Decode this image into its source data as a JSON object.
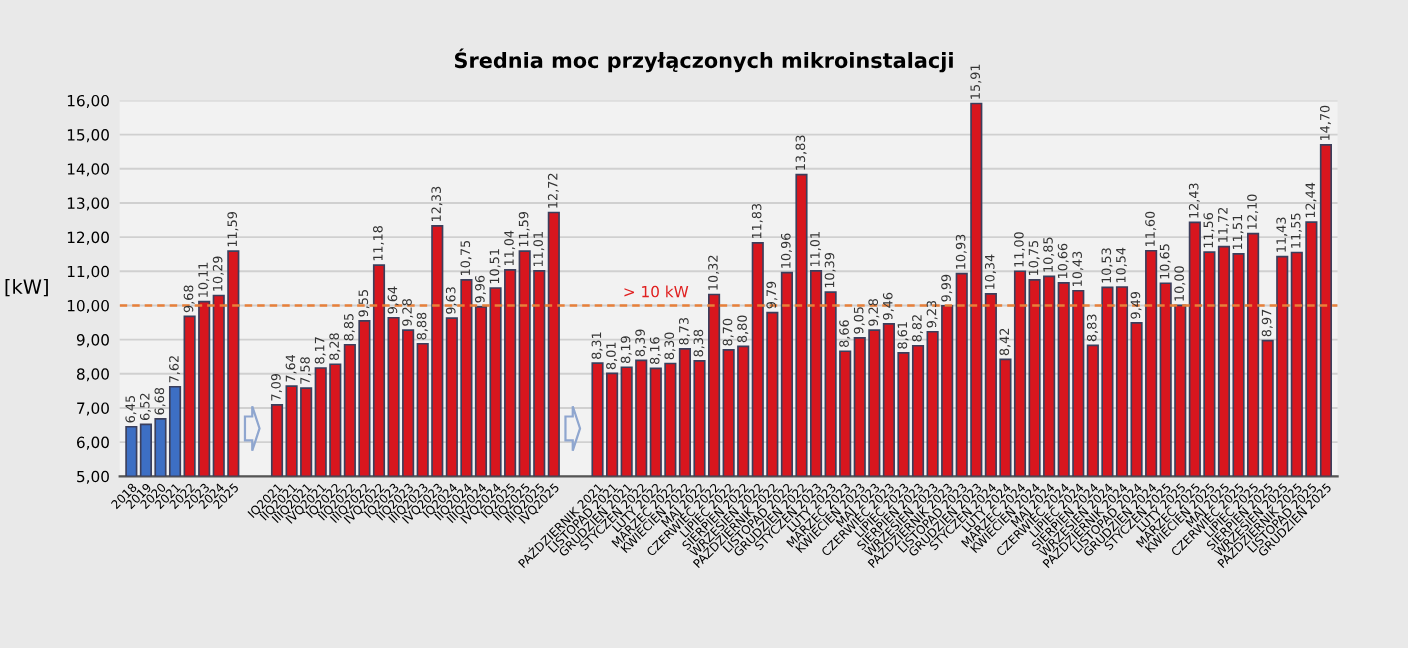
{
  "chart_data": {
    "type": "bar",
    "title": "Średnia moc przyłączonych mikroinstalacji",
    "ylabel": "[kW]",
    "categories": [
      "2018",
      "2019",
      "2020",
      "2021",
      "2022",
      "2023",
      "2024",
      "2025",
      null,
      null,
      "IQ2021",
      "IIQ2021",
      "IIIQ2021",
      "IVQ2021",
      "IQ2022",
      "IIQ2022",
      "IIIQ2022",
      "IVQ2022",
      "IQ2023",
      "IIQ2023",
      "IIIQ2023",
      "IVQ2023",
      "IQ2024",
      "IIQ2024",
      "IIIQ2024",
      "IVQ2024",
      "IQ2025",
      "IIQ2025",
      "IIIQ2025",
      "IVQ2025",
      null,
      null,
      "PAŹDZIERNIK 2021",
      "LISTOPAD 2021",
      "GRUDZIEŃ 2021",
      "STYCZEŃ 2022",
      "LUTY 2022",
      "MARZEC 2022",
      "KWIECIEŃ 2022",
      "MAJ 2022",
      "CZERWIEC 2022",
      "LIPIEC 2022",
      "SIERPIEŃ 2022",
      "WRZESIEŃ 2022",
      "PAŹDZIERNIK 2022",
      "LISTOPAD 2022",
      "GRUDZIEŃ 2022",
      "STYCZEŃ 2023",
      "LUTY 2023",
      "MARZEC 2023",
      "KWIECIEŃ 2023",
      "MAJ 2023",
      "CZERWIEC 2023",
      "LIPIEC 2023",
      "SIERPIEŃ 2023",
      "WRZESIEŃ 2023",
      "PAŹDZIERNIK 2023",
      "LISTOPAD 2023",
      "GRUDZIEŃ 2023",
      "STYCZEŃ 2024",
      "LUTY 2024",
      "MARZEC 2024",
      "KWIECIEŃ 2024",
      "MAJ 2024",
      "CZERWIEC 2024",
      "LIPIEC 2024",
      "SIERPIEŃ 2024",
      "WRZESIEŃ 2024",
      "PAŹDZIERNIK 2024",
      "LISTOPAD 2024",
      "GRUDZIEŃ 2024",
      "STYCZEŃ 2025",
      "LUTY 2025",
      "MARZEC 2025",
      "KWIECIEŃ 2025",
      "MAJ 2025",
      "CZERWIEC 2025",
      "LIPIEC 2025",
      "SIERPIEŃ 2025",
      "WRZESIEŃ 2025",
      "PAŹDZIERNIK 2025",
      "LISTOPAD 2025",
      "GRUDZIEŃ 2025"
    ],
    "values": [
      6.45,
      6.52,
      6.68,
      7.62,
      9.68,
      10.11,
      10.29,
      11.59,
      null,
      null,
      7.09,
      7.64,
      7.58,
      8.17,
      8.28,
      8.85,
      9.55,
      11.18,
      9.64,
      9.28,
      8.88,
      12.33,
      9.63,
      10.75,
      9.96,
      10.51,
      11.04,
      11.59,
      11.01,
      12.72,
      null,
      null,
      8.31,
      8.01,
      8.19,
      8.39,
      8.16,
      8.3,
      8.73,
      8.38,
      10.32,
      8.7,
      8.8,
      11.83,
      9.79,
      10.96,
      13.83,
      11.01,
      10.39,
      8.66,
      9.05,
      9.28,
      9.46,
      8.61,
      8.82,
      9.23,
      9.99,
      10.93,
      15.91,
      10.34,
      8.42,
      11.0,
      10.75,
      10.85,
      10.66,
      10.43,
      8.83,
      10.53,
      10.54,
      9.49,
      11.6,
      10.65,
      10.0,
      12.43,
      11.56,
      11.72,
      11.51,
      12.1,
      8.97,
      11.43,
      11.55,
      12.44,
      14.7
    ],
    "value_labels": [
      "6,45",
      "6,52",
      "6,68",
      "7,62",
      "9,68",
      "10,11",
      "10,29",
      "11,59",
      null,
      null,
      "7,09",
      "7,64",
      "7,58",
      "8,17",
      "8,28",
      "8,85",
      "9,55",
      "11,18",
      "9,64",
      "9,28",
      "8,88",
      "12,33",
      "9,63",
      "10,75",
      "9,96",
      "10,51",
      "11,04",
      "11,59",
      "11,01",
      "12,72",
      null,
      null,
      "8,31",
      "8,01",
      "8,19",
      "8,39",
      "8,16",
      "8,30",
      "8,73",
      "8,38",
      "10,32",
      "8,70",
      "8,80",
      "11,83",
      "9,79",
      "10,96",
      "13,83",
      "11,01",
      "10,39",
      "8,66",
      "9,05",
      "9,28",
      "9,46",
      "8,61",
      "8,82",
      "9,23",
      "9,99",
      "10,93",
      "15,91",
      "10,34",
      "8,42",
      "11,00",
      "10,75",
      "10,85",
      "10,66",
      "10,43",
      "8,83",
      "10,53",
      "10,54",
      "9,49",
      "11,60",
      "10,65",
      "10,00",
      "12,43",
      "11,56",
      "11,72",
      "11,51",
      "12,10",
      "8,97",
      "11,43",
      "11,55",
      "12,44",
      "14,70"
    ],
    "colors": [
      "#3d6fc4",
      "#3d6fc4",
      "#3d6fc4",
      "#3d6fc4",
      "#d8161e",
      "#d8161e",
      "#d8161e",
      "#d8161e",
      null,
      null,
      "#d8161e",
      "#d8161e",
      "#d8161e",
      "#d8161e",
      "#d8161e",
      "#d8161e",
      "#d8161e",
      "#d8161e",
      "#d8161e",
      "#d8161e",
      "#d8161e",
      "#d8161e",
      "#d8161e",
      "#d8161e",
      "#d8161e",
      "#d8161e",
      "#d8161e",
      "#d8161e",
      "#d8161e",
      "#d8161e",
      null,
      null,
      "#d8161e",
      "#d8161e",
      "#d8161e",
      "#d8161e",
      "#d8161e",
      "#d8161e",
      "#d8161e",
      "#d8161e",
      "#d8161e",
      "#d8161e",
      "#d8161e",
      "#d8161e",
      "#d8161e",
      "#d8161e",
      "#d8161e",
      "#d8161e",
      "#d8161e",
      "#d8161e",
      "#d8161e",
      "#d8161e",
      "#d8161e",
      "#d8161e",
      "#d8161e",
      "#d8161e",
      "#d8161e",
      "#d8161e",
      "#d8161e",
      "#d8161e",
      "#d8161e",
      "#d8161e",
      "#d8161e",
      "#d8161e",
      "#d8161e",
      "#d8161e",
      "#d8161e",
      "#d8161e",
      "#d8161e",
      "#d8161e",
      "#d8161e",
      "#d8161e",
      "#d8161e",
      "#d8161e",
      "#d8161e",
      "#d8161e",
      "#d8161e",
      "#d8161e",
      "#d8161e",
      "#d8161e",
      "#d8161e",
      "#d8161e",
      "#d8161e"
    ],
    "ylim": [
      5,
      16
    ],
    "yticks": [
      {
        "value": 5,
        "label": "5,00"
      },
      {
        "value": 6,
        "label": "6,00"
      },
      {
        "value": 7,
        "label": "7,00"
      },
      {
        "value": 8,
        "label": "8,00"
      },
      {
        "value": 9,
        "label": "9,00"
      },
      {
        "value": 10,
        "label": "10,00"
      },
      {
        "value": 11,
        "label": "11,00"
      },
      {
        "value": 12,
        "label": "12,00"
      },
      {
        "value": 13,
        "label": "13,00"
      },
      {
        "value": 14,
        "label": "14,00"
      },
      {
        "value": 15,
        "label": "15,00"
      },
      {
        "value": 16,
        "label": "16,00"
      }
    ],
    "grid": "y",
    "ref_lines": [
      {
        "axis": "y",
        "value": 10,
        "label": "> 10 kW",
        "color": "#e8803a",
        "line_style": "dashed"
      }
    ]
  }
}
